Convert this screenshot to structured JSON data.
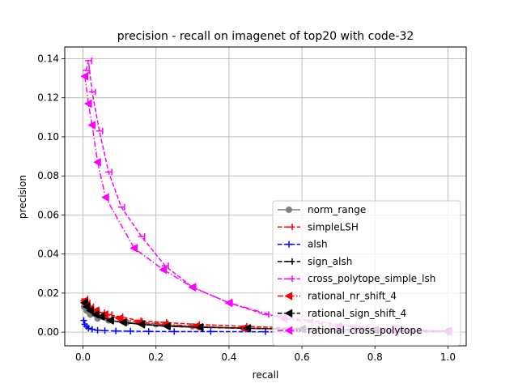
{
  "chart_data": {
    "type": "line",
    "title": "precision - recall on imagenet of top20 with code-32",
    "xlabel": "recall",
    "ylabel": "precision",
    "xlim": [
      -0.05,
      1.05
    ],
    "ylim": [
      -0.007,
      0.146
    ],
    "xticks": [
      0.0,
      0.2,
      0.4,
      0.6,
      0.8,
      1.0
    ],
    "xtick_labels": [
      "0.0",
      "0.2",
      "0.4",
      "0.6",
      "0.8",
      "1.0"
    ],
    "yticks": [
      0.0,
      0.02,
      0.04,
      0.06,
      0.08,
      0.1,
      0.12,
      0.14
    ],
    "ytick_labels": [
      "0.00",
      "0.02",
      "0.04",
      "0.06",
      "0.08",
      "0.10",
      "0.12",
      "0.14"
    ],
    "grid": true,
    "legend_position": "lower-right",
    "series": [
      {
        "name": "norm_range",
        "color": "#808080",
        "linestyle": "solid",
        "marker": "circle",
        "x": [
          0.003,
          0.01,
          0.02,
          0.04,
          0.07,
          0.12,
          0.2,
          0.3,
          0.44,
          0.6,
          0.8,
          1.0
        ],
        "y": [
          0.013,
          0.011,
          0.009,
          0.007,
          0.006,
          0.005,
          0.004,
          0.003,
          0.002,
          0.0015,
          0.001,
          0.0005
        ]
      },
      {
        "name": "simpleLSH",
        "color": "#ff0000",
        "linestyle": "dashed",
        "marker": "tri_left",
        "x": [
          0.004,
          0.01,
          0.02,
          0.035,
          0.05,
          0.07,
          0.1,
          0.15,
          0.22,
          0.31,
          0.44,
          0.6,
          0.8,
          1.0
        ],
        "y": [
          0.017,
          0.015,
          0.013,
          0.011,
          0.01,
          0.009,
          0.008,
          0.006,
          0.005,
          0.004,
          0.003,
          0.002,
          0.001,
          0.0005
        ]
      },
      {
        "name": "alsh",
        "color": "#0000ff",
        "linestyle": "dashed",
        "marker": "plus",
        "x": [
          0.002,
          0.005,
          0.01,
          0.015,
          0.025,
          0.04,
          0.06,
          0.09,
          0.13,
          0.18,
          0.25,
          0.35,
          0.5,
          0.7,
          1.0
        ],
        "y": [
          0.006,
          0.004,
          0.003,
          0.002,
          0.0015,
          0.001,
          0.0008,
          0.0006,
          0.0005,
          0.0004,
          0.0003,
          0.0003,
          0.0002,
          0.0002,
          0.0002
        ]
      },
      {
        "name": "sign_alsh",
        "color": "#000000",
        "linestyle": "dashed",
        "marker": "tri_left",
        "x": [
          0.004,
          0.01,
          0.02,
          0.035,
          0.05,
          0.075,
          0.11,
          0.16,
          0.23,
          0.32,
          0.45,
          0.6,
          0.8,
          1.0
        ],
        "y": [
          0.016,
          0.013,
          0.011,
          0.009,
          0.008,
          0.006,
          0.005,
          0.004,
          0.003,
          0.0025,
          0.002,
          0.0015,
          0.001,
          0.0005
        ]
      },
      {
        "name": "cross_polytope_simple_lsh",
        "color": "#ff00ff",
        "linestyle": "dashed",
        "marker": "tri_left",
        "x": [
          0.008,
          0.015,
          0.025,
          0.045,
          0.07,
          0.105,
          0.16,
          0.225,
          0.3,
          0.4,
          0.5,
          0.62,
          0.74,
          0.87,
          1.0
        ],
        "y": [
          0.134,
          0.139,
          0.123,
          0.103,
          0.082,
          0.064,
          0.049,
          0.034,
          0.023,
          0.015,
          0.009,
          0.006,
          0.003,
          0.0015,
          0.0003
        ]
      },
      {
        "name": "rational_nr_shift_4",
        "color": "#ff0000",
        "linestyle": "dashdot",
        "marker": "triangle_left",
        "x": [
          0.004,
          0.01,
          0.02,
          0.035,
          0.06,
          0.1,
          0.155,
          0.225,
          0.31,
          0.44,
          0.6,
          0.8,
          1.0
        ],
        "y": [
          0.016,
          0.014,
          0.012,
          0.011,
          0.009,
          0.007,
          0.005,
          0.004,
          0.003,
          0.002,
          0.0015,
          0.001,
          0.0005
        ]
      },
      {
        "name": "rational_sign_shift_4",
        "color": "#000000",
        "linestyle": "dashed",
        "marker": "triangle_left",
        "x": [
          0.004,
          0.01,
          0.02,
          0.035,
          0.05,
          0.075,
          0.11,
          0.16,
          0.23,
          0.32,
          0.45,
          0.6,
          0.8,
          1.0
        ],
        "y": [
          0.015,
          0.013,
          0.011,
          0.009,
          0.008,
          0.006,
          0.005,
          0.004,
          0.003,
          0.0025,
          0.002,
          0.0015,
          0.001,
          0.0005
        ]
      },
      {
        "name": "rational_cross_polytope",
        "color": "#ff00ff",
        "linestyle": "dashdot",
        "marker": "triangle_left",
        "x": [
          0.005,
          0.015,
          0.025,
          0.04,
          0.062,
          0.14,
          0.22,
          0.3,
          0.4,
          0.55,
          0.7,
          0.85,
          1.0
        ],
        "y": [
          0.131,
          0.117,
          0.106,
          0.087,
          0.069,
          0.043,
          0.032,
          0.023,
          0.015,
          0.007,
          0.003,
          0.001,
          0.0003
        ]
      }
    ]
  }
}
